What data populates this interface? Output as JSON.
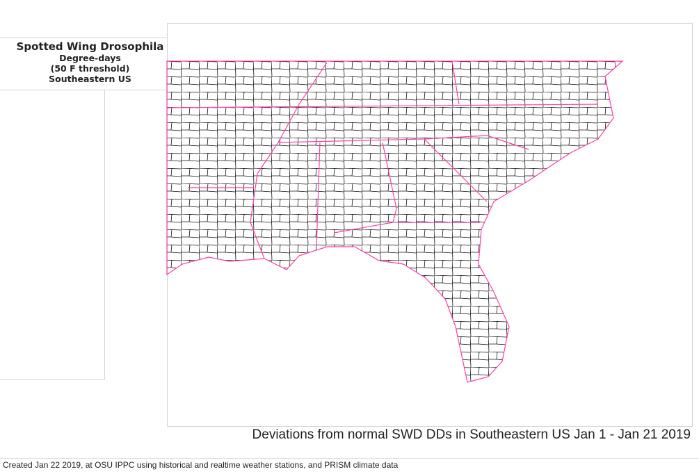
{
  "title": {
    "line1": "Spotted Wing Drosophila",
    "line2": "Degree-days",
    "line3": "(50 F threshold)",
    "line4": "Southeastern US"
  },
  "map": {
    "caption": "Deviations from normal SWD DDs in Southeastern US Jan 1 - Jan 21 2019",
    "county_line_color": "#111111",
    "state_line_color": "#ff3fa8"
  },
  "footer": "Created Jan 22 2019, at OSU IPPC using  historical and  realtime weather stations, and PRISM climate data"
}
